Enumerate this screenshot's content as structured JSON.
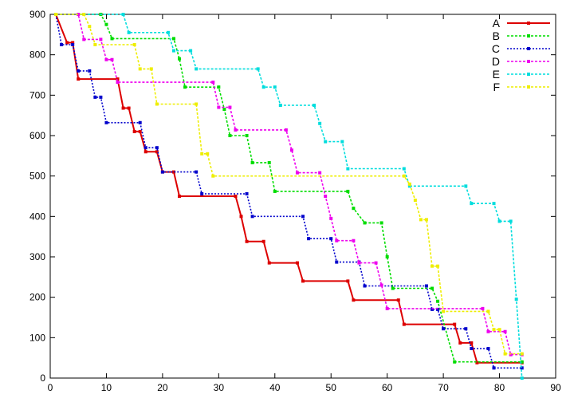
{
  "chart_data": {
    "type": "line",
    "title": "",
    "xlabel": "",
    "ylabel": "",
    "xlim": [
      0,
      90
    ],
    "ylim": [
      0,
      900
    ],
    "xticks": [
      0,
      10,
      20,
      30,
      40,
      50,
      60,
      70,
      80,
      90
    ],
    "yticks": [
      0,
      100,
      200,
      300,
      400,
      500,
      600,
      700,
      800,
      900
    ],
    "grid": false,
    "legend_position": "top-right",
    "series": [
      {
        "name": "A",
        "color": "#dd0000",
        "points": [
          [
            1,
            900
          ],
          [
            3,
            830
          ],
          [
            4,
            830
          ],
          [
            5,
            740
          ],
          [
            12,
            740
          ],
          [
            13,
            668
          ],
          [
            14,
            668
          ],
          [
            15,
            610
          ],
          [
            16,
            610
          ],
          [
            17,
            560
          ],
          [
            19,
            560
          ],
          [
            20,
            510
          ],
          [
            22,
            510
          ],
          [
            23,
            450
          ],
          [
            33,
            450
          ],
          [
            34,
            400
          ],
          [
            35,
            338
          ],
          [
            38,
            338
          ],
          [
            39,
            285
          ],
          [
            44,
            285
          ],
          [
            45,
            240
          ],
          [
            53,
            240
          ],
          [
            54,
            193
          ],
          [
            62,
            193
          ],
          [
            63,
            133
          ],
          [
            72,
            133
          ],
          [
            73,
            87
          ],
          [
            75,
            87
          ],
          [
            76,
            38
          ],
          [
            84,
            38
          ]
        ]
      },
      {
        "name": "B",
        "color": "#00dd00",
        "points": [
          [
            1,
            900
          ],
          [
            9,
            900
          ],
          [
            10,
            875
          ],
          [
            11,
            840
          ],
          [
            22,
            840
          ],
          [
            23,
            790
          ],
          [
            24,
            720
          ],
          [
            30,
            720
          ],
          [
            31,
            665
          ],
          [
            32,
            600
          ],
          [
            35,
            600
          ],
          [
            36,
            533
          ],
          [
            39,
            533
          ],
          [
            40,
            462
          ],
          [
            53,
            462
          ],
          [
            54,
            420
          ],
          [
            56,
            384
          ],
          [
            59,
            384
          ],
          [
            60,
            300
          ],
          [
            61,
            222
          ],
          [
            68,
            222
          ],
          [
            69,
            190
          ],
          [
            72,
            40
          ],
          [
            84,
            40
          ]
        ]
      },
      {
        "name": "C",
        "color": "#0000cc",
        "points": [
          [
            1,
            900
          ],
          [
            2,
            825
          ],
          [
            4,
            825
          ],
          [
            5,
            760
          ],
          [
            7,
            760
          ],
          [
            8,
            695
          ],
          [
            9,
            695
          ],
          [
            10,
            632
          ],
          [
            16,
            632
          ],
          [
            17,
            570
          ],
          [
            19,
            570
          ],
          [
            20,
            510
          ],
          [
            26,
            510
          ],
          [
            27,
            456
          ],
          [
            35,
            456
          ],
          [
            36,
            400
          ],
          [
            45,
            400
          ],
          [
            46,
            345
          ],
          [
            50,
            345
          ],
          [
            51,
            287
          ],
          [
            55,
            287
          ],
          [
            56,
            228
          ],
          [
            67,
            228
          ],
          [
            68,
            170
          ],
          [
            69,
            170
          ],
          [
            70,
            122
          ],
          [
            74,
            122
          ],
          [
            75,
            73
          ],
          [
            78,
            73
          ],
          [
            79,
            25
          ],
          [
            84,
            25
          ]
        ]
      },
      {
        "name": "D",
        "color": "#ee00ee",
        "points": [
          [
            1,
            900
          ],
          [
            5,
            900
          ],
          [
            6,
            838
          ],
          [
            9,
            838
          ],
          [
            10,
            788
          ],
          [
            11,
            788
          ],
          [
            12,
            732
          ],
          [
            29,
            732
          ],
          [
            30,
            670
          ],
          [
            32,
            670
          ],
          [
            33,
            614
          ],
          [
            42,
            614
          ],
          [
            43,
            564
          ],
          [
            44,
            508
          ],
          [
            48,
            508
          ],
          [
            49,
            450
          ],
          [
            50,
            395
          ],
          [
            51,
            340
          ],
          [
            54,
            340
          ],
          [
            55,
            285
          ],
          [
            58,
            285
          ],
          [
            59,
            230
          ],
          [
            60,
            172
          ],
          [
            77,
            172
          ],
          [
            78,
            115
          ],
          [
            81,
            115
          ],
          [
            82,
            58
          ],
          [
            84,
            58
          ]
        ]
      },
      {
        "name": "E",
        "color": "#00dddd",
        "points": [
          [
            1,
            900
          ],
          [
            13,
            900
          ],
          [
            14,
            855
          ],
          [
            21,
            855
          ],
          [
            22,
            810
          ],
          [
            25,
            810
          ],
          [
            26,
            765
          ],
          [
            37,
            765
          ],
          [
            38,
            720
          ],
          [
            40,
            720
          ],
          [
            41,
            675
          ],
          [
            47,
            675
          ],
          [
            48,
            630
          ],
          [
            49,
            585
          ],
          [
            52,
            585
          ],
          [
            53,
            518
          ],
          [
            63,
            518
          ],
          [
            64,
            475
          ],
          [
            74,
            475
          ],
          [
            75,
            432
          ],
          [
            79,
            432
          ],
          [
            80,
            388
          ],
          [
            82,
            388
          ],
          [
            83,
            195
          ],
          [
            84,
            0
          ]
        ]
      },
      {
        "name": "F",
        "color": "#eeee00",
        "points": [
          [
            1,
            900
          ],
          [
            6,
            900
          ],
          [
            7,
            870
          ],
          [
            8,
            825
          ],
          [
            15,
            825
          ],
          [
            16,
            765
          ],
          [
            18,
            765
          ],
          [
            19,
            678
          ],
          [
            26,
            678
          ],
          [
            27,
            555
          ],
          [
            28,
            555
          ],
          [
            29,
            500
          ],
          [
            63,
            500
          ],
          [
            64,
            480
          ],
          [
            65,
            440
          ],
          [
            66,
            392
          ],
          [
            67,
            392
          ],
          [
            68,
            277
          ],
          [
            69,
            277
          ],
          [
            70,
            165
          ],
          [
            78,
            165
          ],
          [
            79,
            120
          ],
          [
            80,
            120
          ],
          [
            81,
            60
          ],
          [
            84,
            60
          ]
        ]
      }
    ]
  }
}
